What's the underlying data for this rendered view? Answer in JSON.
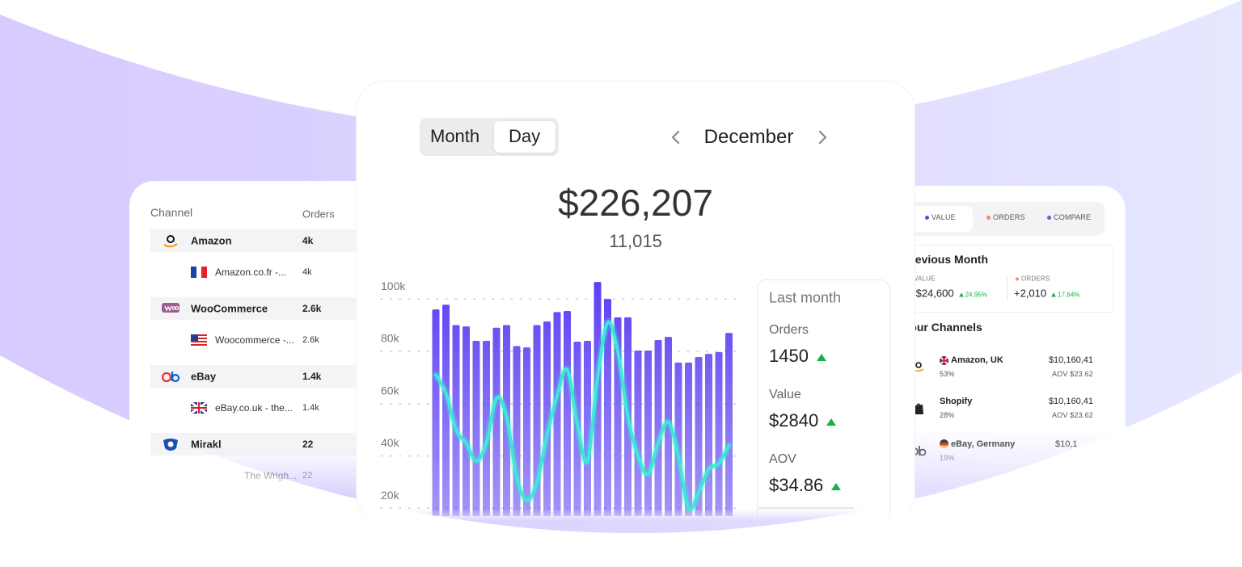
{
  "period_toggle": {
    "options": [
      "Month",
      "Day"
    ],
    "selected_index": 1
  },
  "period": "December",
  "total": "$226,207",
  "count": "11,015",
  "chart_data": {
    "type": "bar",
    "ylim": [
      17000,
      109000
    ],
    "yticks": [
      {
        "value": 100000,
        "label": "100k"
      },
      {
        "value": 80000,
        "label": "80k"
      },
      {
        "value": 60000,
        "label": "60k"
      },
      {
        "value": 40000,
        "label": "40k"
      },
      {
        "value": 20000,
        "label": "20k"
      }
    ],
    "grid": true,
    "series": [
      {
        "type": "bar",
        "color": "#5b3ef2",
        "values": [
          96000,
          97800,
          90000,
          89500,
          84000,
          84000,
          89000,
          90000,
          82000,
          81500,
          90000,
          91400,
          95000,
          95400,
          83700,
          84000,
          106500,
          100000,
          93000,
          93000,
          80300,
          80300,
          84300,
          85500,
          75700,
          75700,
          77800,
          79000,
          79700,
          87000
        ]
      },
      {
        "type": "line",
        "color": "#3ee8d8",
        "values": [
          71000,
          64000,
          50000,
          45000,
          38000,
          45000,
          62000,
          55000,
          32000,
          23000,
          30000,
          48000,
          63000,
          73000,
          52000,
          38000,
          70000,
          91000,
          80000,
          55000,
          40000,
          33000,
          45000,
          53000,
          40000,
          20000,
          26000,
          35000,
          37000,
          44000
        ]
      }
    ]
  },
  "last_month": {
    "title": "Last month",
    "metrics": [
      {
        "label": "Orders",
        "value": "1450"
      },
      {
        "label": "Value",
        "value": "$2840"
      },
      {
        "label": "AOV",
        "value": "$34.86"
      }
    ]
  },
  "channels_table": {
    "headers": [
      "Channel",
      "Orders"
    ],
    "rows": [
      {
        "name": "Amazon",
        "orders": "4k"
      },
      {
        "name": "Amazon.co.fr  -...",
        "orders": "4k"
      },
      {
        "name": "WooCommerce",
        "orders": "2.6k"
      },
      {
        "name": "Woocommerce -...",
        "orders": "2.6k"
      },
      {
        "name": "eBay",
        "orders": "1.4k"
      },
      {
        "name": "eBay.co.uk - the...",
        "orders": "1.4k"
      },
      {
        "name": "Mirakl",
        "orders": "22"
      },
      {
        "name": "The Wrigh...",
        "orders": "22"
      }
    ]
  },
  "summary_panel": {
    "tabs": [
      "VALUE",
      "ORDERS",
      "COMPARE"
    ],
    "previous_month": {
      "title": "Previous Month",
      "metrics": [
        {
          "label": "VALUE",
          "value": "+$24,600",
          "change": "24.95%"
        },
        {
          "label": "ORDERS",
          "value": "+2,010",
          "change": "17.64%"
        }
      ]
    },
    "channels": {
      "title": "Your Channels",
      "rows": [
        {
          "name": "Amazon, UK",
          "share": "53%",
          "value": "$10,160,41",
          "aov": "AOV $23.62"
        },
        {
          "name": "Shopify",
          "share": "28%",
          "value": "$10,160,41",
          "aov": "AOV $23.62"
        },
        {
          "name": "eBay, Germany",
          "share": "19%",
          "value": "$10,1"
        }
      ]
    }
  }
}
